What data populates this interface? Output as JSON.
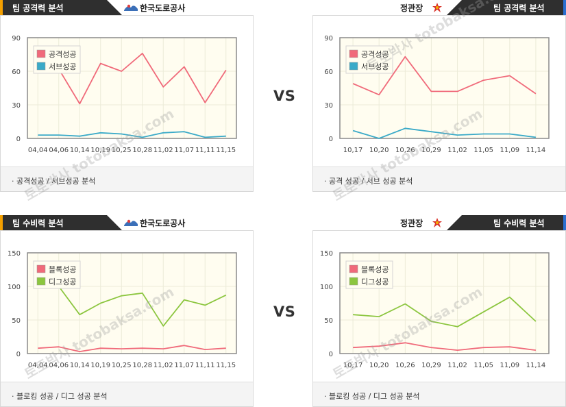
{
  "vs_label": "VS",
  "tab_attack": "팀 공격력 분석",
  "tab_defense": "팀 수비력 분석",
  "home_team": "한국도로공사",
  "away_team": "정관장",
  "watermark": "토토박사 totobaksa.com",
  "footers": {
    "p1": "· 공격성공 / 서브성공 분석",
    "p2": "· 공격 성공 / 서브 성공 분석",
    "p3": "· 블로킹 성공 / 디그 성공 분석",
    "p4": "· 블로킹 성공 / 디그 성공 분석"
  },
  "colors": {
    "red": "#f06a7a",
    "teal": "#3aaac8",
    "green": "#8cc63f",
    "tab": "#2f2f2f",
    "accent_orange": "#f4a000",
    "accent_blue": "#2a6fd0"
  },
  "chart_data": [
    {
      "id": "home-attack",
      "type": "line",
      "ylim": [
        0,
        90
      ],
      "yticks": [
        0,
        30,
        60,
        90
      ],
      "categories": [
        "04,04",
        "04,06",
        "10,14",
        "10,19",
        "10,25",
        "10,28",
        "11,02",
        "11,07",
        "11,11",
        "11,15"
      ],
      "series": [
        {
          "name": "공격성공",
          "color": "#f06a7a",
          "values": [
            62,
            62,
            31,
            67,
            60,
            76,
            46,
            64,
            32,
            61
          ]
        },
        {
          "name": "서브성공",
          "color": "#3aaac8",
          "values": [
            3,
            3,
            2,
            5,
            4,
            1,
            5,
            6,
            1,
            2
          ]
        }
      ]
    },
    {
      "id": "away-attack",
      "type": "line",
      "ylim": [
        0,
        90
      ],
      "yticks": [
        0,
        30,
        60,
        90
      ],
      "categories": [
        "10,17",
        "10,20",
        "10,26",
        "10,29",
        "11,02",
        "11,05",
        "11,09",
        "11,14"
      ],
      "series": [
        {
          "name": "공격성공",
          "color": "#f06a7a",
          "values": [
            49,
            39,
            73,
            42,
            42,
            52,
            56,
            40
          ]
        },
        {
          "name": "서브성공",
          "color": "#3aaac8",
          "values": [
            7,
            0,
            9,
            6,
            3,
            4,
            4,
            1
          ]
        }
      ]
    },
    {
      "id": "home-defense",
      "type": "line",
      "ylim": [
        0,
        150
      ],
      "yticks": [
        0,
        50,
        100,
        150
      ],
      "categories": [
        "04,04",
        "04,06",
        "10,14",
        "10,19",
        "10,25",
        "10,28",
        "11,02",
        "11,07",
        "11,11",
        "11,15"
      ],
      "series": [
        {
          "name": "블록성공",
          "color": "#f06a7a",
          "values": [
            8,
            10,
            3,
            8,
            7,
            8,
            7,
            12,
            6,
            8
          ]
        },
        {
          "name": "디그성공",
          "color": "#8cc63f",
          "values": [
            100,
            100,
            58,
            75,
            86,
            90,
            41,
            80,
            72,
            87
          ]
        }
      ]
    },
    {
      "id": "away-defense",
      "type": "line",
      "ylim": [
        0,
        150
      ],
      "yticks": [
        0,
        50,
        100,
        150
      ],
      "categories": [
        "10,17",
        "10,20",
        "10,26",
        "10,29",
        "11,02",
        "11,05",
        "11,09",
        "11,14"
      ],
      "series": [
        {
          "name": "블록성공",
          "color": "#f06a7a",
          "values": [
            9,
            11,
            16,
            9,
            5,
            9,
            10,
            5
          ]
        },
        {
          "name": "디그성공",
          "color": "#8cc63f",
          "values": [
            58,
            55,
            74,
            48,
            40,
            62,
            84,
            48
          ]
        }
      ]
    }
  ]
}
